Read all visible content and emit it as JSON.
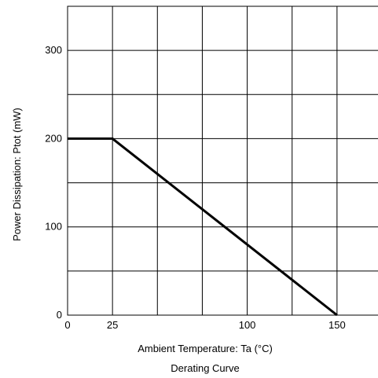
{
  "chart_data": {
    "type": "line",
    "title": "",
    "caption": "Derating Curve",
    "xlabel": "Ambient Temperature: Ta (°C)",
    "ylabel": "Power Dissipation: Ptot (mW)",
    "xlim": [
      0,
      175
    ],
    "ylim": [
      0,
      350
    ],
    "grid": true,
    "x_ticks": [
      {
        "value": 0,
        "label": "0"
      },
      {
        "value": 25,
        "label": "25"
      },
      {
        "value": 100,
        "label": "100"
      },
      {
        "value": 150,
        "label": "150"
      }
    ],
    "y_ticks": [
      {
        "value": 0,
        "label": "0"
      },
      {
        "value": 100,
        "label": "100"
      },
      {
        "value": 200,
        "label": "200"
      },
      {
        "value": 300,
        "label": "300"
      }
    ],
    "x_gridlines": [
      25,
      50,
      75,
      100,
      125,
      150
    ],
    "y_gridlines": [
      50,
      100,
      150,
      200,
      250,
      300
    ],
    "series": [
      {
        "color": "#000000",
        "x": [
          0,
          25,
          150
        ],
        "y": [
          200,
          200,
          0
        ]
      }
    ]
  }
}
